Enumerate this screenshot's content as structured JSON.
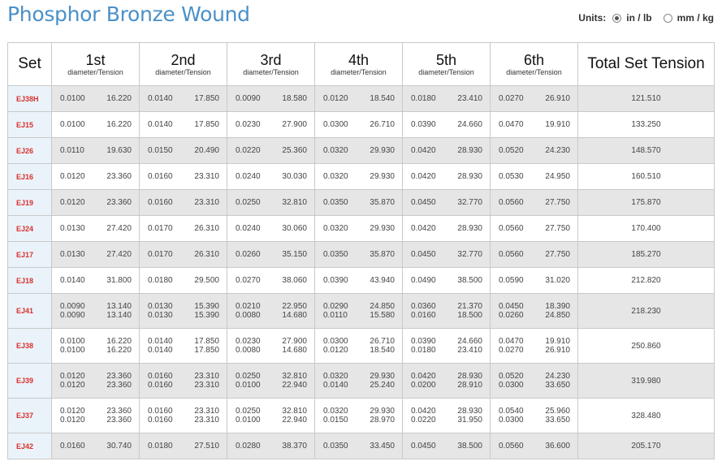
{
  "page": {
    "title": "Phosphor Bronze Wound"
  },
  "units": {
    "label": "Units:",
    "options": [
      {
        "label": "in / lb",
        "selected": true
      },
      {
        "label": "mm / kg",
        "selected": false
      }
    ]
  },
  "table": {
    "headers": {
      "set": "Set",
      "sub": "diameter/Tension",
      "strings": [
        "1st",
        "2nd",
        "3rd",
        "4th",
        "5th",
        "6th"
      ],
      "total": "Total Set Tension"
    },
    "rows": [
      {
        "set": "EJ38H",
        "strings": [
          [
            [
              "0.0100",
              "16.220"
            ]
          ],
          [
            [
              "0.0140",
              "17.850"
            ]
          ],
          [
            [
              "0.0090",
              "18.580"
            ]
          ],
          [
            [
              "0.0120",
              "18.540"
            ]
          ],
          [
            [
              "0.0180",
              "23.410"
            ]
          ],
          [
            [
              "0.0270",
              "26.910"
            ]
          ]
        ],
        "total": "121.510"
      },
      {
        "set": "EJ15",
        "strings": [
          [
            [
              "0.0100",
              "16.220"
            ]
          ],
          [
            [
              "0.0140",
              "17.850"
            ]
          ],
          [
            [
              "0.0230",
              "27.900"
            ]
          ],
          [
            [
              "0.0300",
              "26.710"
            ]
          ],
          [
            [
              "0.0390",
              "24.660"
            ]
          ],
          [
            [
              "0.0470",
              "19.910"
            ]
          ]
        ],
        "total": "133.250"
      },
      {
        "set": "EJ26",
        "strings": [
          [
            [
              "0.0110",
              "19.630"
            ]
          ],
          [
            [
              "0.0150",
              "20.490"
            ]
          ],
          [
            [
              "0.0220",
              "25.360"
            ]
          ],
          [
            [
              "0.0320",
              "29.930"
            ]
          ],
          [
            [
              "0.0420",
              "28.930"
            ]
          ],
          [
            [
              "0.0520",
              "24.230"
            ]
          ]
        ],
        "total": "148.570"
      },
      {
        "set": "EJ16",
        "strings": [
          [
            [
              "0.0120",
              "23.360"
            ]
          ],
          [
            [
              "0.0160",
              "23.310"
            ]
          ],
          [
            [
              "0.0240",
              "30.030"
            ]
          ],
          [
            [
              "0.0320",
              "29.930"
            ]
          ],
          [
            [
              "0.0420",
              "28.930"
            ]
          ],
          [
            [
              "0.0530",
              "24.950"
            ]
          ]
        ],
        "total": "160.510"
      },
      {
        "set": "EJ19",
        "strings": [
          [
            [
              "0.0120",
              "23.360"
            ]
          ],
          [
            [
              "0.0160",
              "23.310"
            ]
          ],
          [
            [
              "0.0250",
              "32.810"
            ]
          ],
          [
            [
              "0.0350",
              "35.870"
            ]
          ],
          [
            [
              "0.0450",
              "32.770"
            ]
          ],
          [
            [
              "0.0560",
              "27.750"
            ]
          ]
        ],
        "total": "175.870"
      },
      {
        "set": "EJ24",
        "strings": [
          [
            [
              "0.0130",
              "27.420"
            ]
          ],
          [
            [
              "0.0170",
              "26.310"
            ]
          ],
          [
            [
              "0.0240",
              "30.060"
            ]
          ],
          [
            [
              "0.0320",
              "29.930"
            ]
          ],
          [
            [
              "0.0420",
              "28.930"
            ]
          ],
          [
            [
              "0.0560",
              "27.750"
            ]
          ]
        ],
        "total": "170.400"
      },
      {
        "set": "EJ17",
        "strings": [
          [
            [
              "0.0130",
              "27.420"
            ]
          ],
          [
            [
              "0.0170",
              "26.310"
            ]
          ],
          [
            [
              "0.0260",
              "35.150"
            ]
          ],
          [
            [
              "0.0350",
              "35.870"
            ]
          ],
          [
            [
              "0.0450",
              "32.770"
            ]
          ],
          [
            [
              "0.0560",
              "27.750"
            ]
          ]
        ],
        "total": "185.270"
      },
      {
        "set": "EJ18",
        "strings": [
          [
            [
              "0.0140",
              "31.800"
            ]
          ],
          [
            [
              "0.0180",
              "29.500"
            ]
          ],
          [
            [
              "0.0270",
              "38.060"
            ]
          ],
          [
            [
              "0.0390",
              "43.940"
            ]
          ],
          [
            [
              "0.0490",
              "38.500"
            ]
          ],
          [
            [
              "0.0590",
              "31.020"
            ]
          ]
        ],
        "total": "212.820"
      },
      {
        "set": "EJ41",
        "strings": [
          [
            [
              "0.0090",
              "13.140"
            ],
            [
              "0.0090",
              "13.140"
            ]
          ],
          [
            [
              "0.0130",
              "15.390"
            ],
            [
              "0.0130",
              "15.390"
            ]
          ],
          [
            [
              "0.0210",
              "22.950"
            ],
            [
              "0.0080",
              "14.680"
            ]
          ],
          [
            [
              "0.0290",
              "24.850"
            ],
            [
              "0.0110",
              "15.580"
            ]
          ],
          [
            [
              "0.0360",
              "21.370"
            ],
            [
              "0.0160",
              "18.500"
            ]
          ],
          [
            [
              "0.0450",
              "18.390"
            ],
            [
              "0.0260",
              "24.850"
            ]
          ]
        ],
        "total": "218.230"
      },
      {
        "set": "EJ38",
        "strings": [
          [
            [
              "0.0100",
              "16.220"
            ],
            [
              "0.0100",
              "16.220"
            ]
          ],
          [
            [
              "0.0140",
              "17.850"
            ],
            [
              "0.0140",
              "17.850"
            ]
          ],
          [
            [
              "0.0230",
              "27.900"
            ],
            [
              "0.0080",
              "14.680"
            ]
          ],
          [
            [
              "0.0300",
              "26.710"
            ],
            [
              "0.0120",
              "18.540"
            ]
          ],
          [
            [
              "0.0390",
              "24.660"
            ],
            [
              "0.0180",
              "23.410"
            ]
          ],
          [
            [
              "0.0470",
              "19.910"
            ],
            [
              "0.0270",
              "26.910"
            ]
          ]
        ],
        "total": "250.860"
      },
      {
        "set": "EJ39",
        "strings": [
          [
            [
              "0.0120",
              "23.360"
            ],
            [
              "0.0120",
              "23.360"
            ]
          ],
          [
            [
              "0.0160",
              "23.310"
            ],
            [
              "0.0160",
              "23.310"
            ]
          ],
          [
            [
              "0.0250",
              "32.810"
            ],
            [
              "0.0100",
              "22.940"
            ]
          ],
          [
            [
              "0.0320",
              "29.930"
            ],
            [
              "0.0140",
              "25.240"
            ]
          ],
          [
            [
              "0.0420",
              "28.930"
            ],
            [
              "0.0200",
              "28.910"
            ]
          ],
          [
            [
              "0.0520",
              "24.230"
            ],
            [
              "0.0300",
              "33.650"
            ]
          ]
        ],
        "total": "319.980"
      },
      {
        "set": "EJ37",
        "strings": [
          [
            [
              "0.0120",
              "23.360"
            ],
            [
              "0.0120",
              "23.360"
            ]
          ],
          [
            [
              "0.0160",
              "23.310"
            ],
            [
              "0.0160",
              "23.310"
            ]
          ],
          [
            [
              "0.0250",
              "32.810"
            ],
            [
              "0.0100",
              "22.940"
            ]
          ],
          [
            [
              "0.0320",
              "29.930"
            ],
            [
              "0.0150",
              "28.970"
            ]
          ],
          [
            [
              "0.0420",
              "28.930"
            ],
            [
              "0.0220",
              "31.950"
            ]
          ],
          [
            [
              "0.0540",
              "25.960"
            ],
            [
              "0.0300",
              "33.650"
            ]
          ]
        ],
        "total": "328.480"
      },
      {
        "set": "EJ42",
        "strings": [
          [
            [
              "0.0160",
              "30.740"
            ]
          ],
          [
            [
              "0.0180",
              "27.510"
            ]
          ],
          [
            [
              "0.0280",
              "38.370"
            ]
          ],
          [
            [
              "0.0350",
              "33.450"
            ]
          ],
          [
            [
              "0.0450",
              "38.500"
            ]
          ],
          [
            [
              "0.0560",
              "36.600"
            ]
          ]
        ],
        "total": "205.170"
      }
    ]
  }
}
